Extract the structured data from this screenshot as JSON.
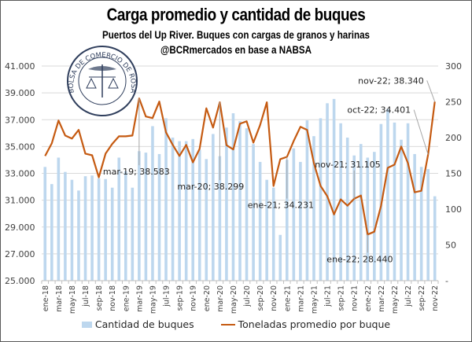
{
  "chart_data": {
    "type": "bar+line",
    "title": "Carga promedio y cantidad de buques",
    "subtitle": "Puertos del Up River. Buques con cargas de granos y harinas",
    "source": "@BCRmercados en base a NABSA",
    "logo_text": "BOLSA DE COMERCIO DE ROSARIO",
    "categories": [
      "ene-18",
      "feb-18",
      "mar-18",
      "abr-18",
      "may-18",
      "jun-18",
      "jul-18",
      "ago-18",
      "sep-18",
      "oct-18",
      "nov-18",
      "dic-18",
      "ene-19",
      "feb-19",
      "mar-19",
      "abr-19",
      "may-19",
      "jun-19",
      "jul-19",
      "ago-19",
      "sep-19",
      "oct-19",
      "nov-19",
      "dic-19",
      "ene-20",
      "feb-20",
      "mar-20",
      "abr-20",
      "may-20",
      "jun-20",
      "jul-20",
      "ago-20",
      "sep-20",
      "oct-20",
      "nov-20",
      "dic-20",
      "ene-21",
      "feb-21",
      "mar-21",
      "abr-21",
      "may-21",
      "jun-21",
      "jul-21",
      "ago-21",
      "sep-21",
      "oct-21",
      "nov-21",
      "dic-21",
      "ene-22",
      "feb-22",
      "mar-22",
      "abr-22",
      "may-22",
      "jun-22",
      "jul-22",
      "ago-22",
      "sep-22",
      "oct-22",
      "nov-22"
    ],
    "x_tick_labels": [
      "ene-18",
      "mar-18",
      "may-18",
      "jul-18",
      "sep-18",
      "nov-18",
      "ene-19",
      "mar-19",
      "may-19",
      "jul-19",
      "sep-19",
      "nov-19",
      "ene-20",
      "mar-20",
      "may-20",
      "jul-20",
      "sep-20",
      "nov-20",
      "ene-21",
      "mar-21",
      "may-21",
      "jul-21",
      "sep-21",
      "nov-21",
      "ene-22",
      "mar-22",
      "may-22",
      "jul-22",
      "sep-22",
      "nov-22"
    ],
    "series": [
      {
        "name": "Cantidad de buques",
        "type": "bar",
        "axis": "right",
        "color": "#bdd7ee",
        "values": [
          159,
          135,
          172,
          152,
          141,
          126,
          146,
          147,
          143,
          142,
          130,
          172,
          153,
          130,
          181,
          179,
          216,
          177,
          227,
          200,
          195,
          195,
          198,
          183,
          170,
          205,
          174,
          214,
          234,
          223,
          213,
          191,
          166,
          141,
          130,
          64,
          169,
          185,
          166,
          224,
          202,
          227,
          248,
          254,
          220,
          200,
          175,
          191,
          172,
          180,
          219,
          240,
          221,
          197,
          220,
          177,
          159,
          156,
          118
        ]
      },
      {
        "name": "Toneladas promedio por buque",
        "type": "line",
        "axis": "left",
        "color": "#c55a11",
        "values": [
          34294,
          35235,
          36940,
          35820,
          35590,
          36240,
          34470,
          34350,
          32700,
          34470,
          35200,
          35760,
          35760,
          35820,
          38583,
          37240,
          37120,
          38350,
          36060,
          35120,
          34300,
          35120,
          33820,
          34820,
          37850,
          36410,
          38299,
          35100,
          34780,
          36700,
          36880,
          35290,
          36590,
          38300,
          32060,
          34060,
          34231,
          35410,
          36470,
          36240,
          33760,
          32060,
          31290,
          29940,
          31060,
          30590,
          31105,
          31350,
          28440,
          28650,
          30590,
          33410,
          33650,
          35000,
          33760,
          31590,
          31700,
          34401,
          38340
        ]
      }
    ],
    "left_axis": {
      "ylim": [
        25000,
        41000
      ],
      "ticks": [
        "25.000",
        "27.000",
        "29.000",
        "31.000",
        "33.000",
        "35.000",
        "37.000",
        "39.000",
        "41.000"
      ]
    },
    "right_axis": {
      "ylim": [
        0,
        300
      ],
      "ticks": [
        "-",
        "50",
        "100",
        "150",
        "200",
        "250",
        "300"
      ]
    },
    "annotations": [
      {
        "category": "mar-19",
        "text": "mar-19; 38.583"
      },
      {
        "category": "mar-20",
        "text": "mar-20; 38.299"
      },
      {
        "category": "ene-21",
        "text": "ene-21; 34.231"
      },
      {
        "category": "nov-21",
        "text": "nov-21; 31.105"
      },
      {
        "category": "ene-22",
        "text": "ene-22; 28.440"
      },
      {
        "category": "oct-22",
        "text": "oct-22; 34.401"
      },
      {
        "category": "nov-22",
        "text": "nov-22; 38.340"
      }
    ],
    "grid": true,
    "legend_position": "bottom"
  }
}
